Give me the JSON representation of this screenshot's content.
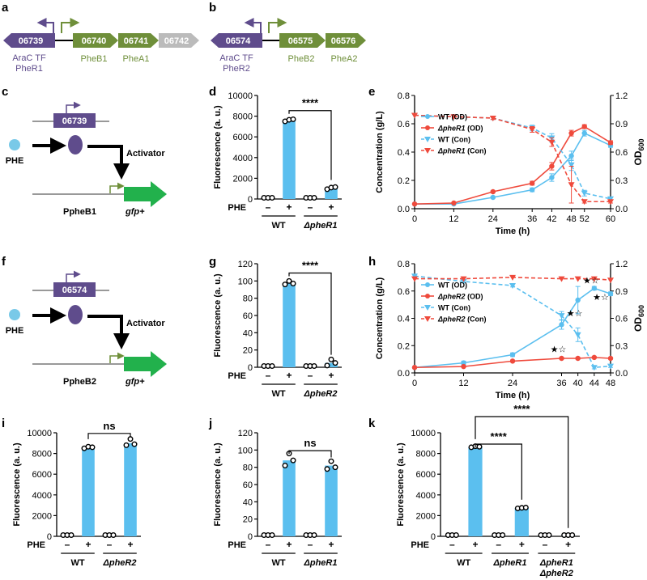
{
  "figure": {
    "panel_letters": [
      "a",
      "b",
      "c",
      "d",
      "e",
      "f",
      "g",
      "h",
      "i",
      "j",
      "k"
    ],
    "colors": {
      "blue": "#5bbfef",
      "red": "#ef4a3c",
      "purple": "#5f4c8c",
      "green": "#6f8f3a",
      "gray": "#bbbbbb",
      "arrow_green": "#22b14c",
      "ecircle": "#79c9e8"
    }
  },
  "operons": {
    "a": {
      "genes": [
        "06739",
        "06740",
        "06741",
        "06742"
      ],
      "label_tf1": "AraC TF",
      "label_tf2": "PheR1",
      "label_b": "PheB1",
      "label_a": "PheA1"
    },
    "b": {
      "genes": [
        "06574",
        "06575",
        "06576"
      ],
      "label_tf1": "AraC TF",
      "label_tf2": "PheR2",
      "label_b": "PheB2",
      "label_a": "PheA2"
    }
  },
  "schematics": {
    "c": {
      "gene": "06739",
      "inducer": "PHE",
      "activator": "Activator",
      "promoter": "PpheB1",
      "reporter": "gfp+"
    },
    "f": {
      "gene": "06574",
      "inducer": "PHE",
      "activator": "Activator",
      "promoter": "PpheB2",
      "reporter": "gfp+"
    }
  },
  "chart_data": [
    {
      "panel": "d",
      "type": "bar",
      "ylabel": "Fluorescence (a. u.)",
      "ylim": [
        0,
        10000
      ],
      "yticks": [
        0,
        2000,
        4000,
        6000,
        8000,
        10000
      ],
      "phe_label": "PHE",
      "phe_states": [
        "–",
        "+",
        "–",
        "+"
      ],
      "groups": [
        "WT",
        "ΔpheR1"
      ],
      "values": [
        20,
        7600,
        20,
        1050
      ],
      "points": [
        [
          20,
          20,
          20
        ],
        [
          7500,
          7650,
          7700
        ],
        [
          20,
          20,
          20
        ],
        [
          950,
          1100,
          1150
        ]
      ],
      "sig": [
        {
          "from": 1,
          "to": 3,
          "label": "****"
        }
      ]
    },
    {
      "panel": "g",
      "type": "bar",
      "ylabel": "Fluorescence (a. u.)",
      "ylim": [
        0,
        120
      ],
      "yticks": [
        0,
        20,
        40,
        60,
        80,
        100,
        120
      ],
      "phe_label": "PHE",
      "phe_states": [
        "–",
        "+",
        "–",
        "+"
      ],
      "groups": [
        "WT",
        "ΔpheR2"
      ],
      "values": [
        0.3,
        98,
        0.3,
        5
      ],
      "points": [
        [
          0.3,
          0.3,
          0.3
        ],
        [
          96,
          100,
          97
        ],
        [
          0.3,
          0.3,
          0.3
        ],
        [
          2,
          9,
          5
        ]
      ],
      "sig": [
        {
          "from": 1,
          "to": 3,
          "label": "****"
        }
      ]
    },
    {
      "panel": "i",
      "type": "bar",
      "ylabel": "Fluorescence (a. u.)",
      "ylim": [
        0,
        10000
      ],
      "yticks": [
        0,
        2000,
        4000,
        6000,
        8000,
        10000
      ],
      "phe_label": "PHE",
      "phe_states": [
        "–",
        "+",
        "–",
        "+"
      ],
      "groups": [
        "WT",
        "ΔpheR2"
      ],
      "values": [
        20,
        8600,
        20,
        9000
      ],
      "points": [
        [
          20,
          20,
          20
        ],
        [
          8500,
          8650,
          8600
        ],
        [
          20,
          20,
          20
        ],
        [
          8800,
          9400,
          8900
        ]
      ],
      "sig": [
        {
          "from": 1,
          "to": 3,
          "label": "ns"
        }
      ]
    },
    {
      "panel": "j",
      "type": "bar",
      "ylabel": "Fluorescence (a. u.)",
      "ylim": [
        0,
        120
      ],
      "yticks": [
        0,
        20,
        40,
        60,
        80,
        100,
        120
      ],
      "phe_label": "PHE",
      "phe_states": [
        "–",
        "+",
        "–",
        "+"
      ],
      "groups": [
        "WT",
        "ΔpheR1"
      ],
      "values": [
        0.3,
        88,
        0.3,
        82
      ],
      "points": [
        [
          0.3,
          0.3,
          0.3
        ],
        [
          82,
          96,
          88
        ],
        [
          0.3,
          0.3,
          0.3
        ],
        [
          78,
          87,
          80
        ]
      ],
      "sig": [
        {
          "from": 1,
          "to": 3,
          "label": "ns"
        }
      ]
    },
    {
      "panel": "k",
      "type": "bar",
      "ylabel": "Fluorescence (a. u.)",
      "ylim": [
        0,
        10000
      ],
      "yticks": [
        0,
        2000,
        4000,
        6000,
        8000,
        10000
      ],
      "phe_label": "PHE",
      "phe_states": [
        "–",
        "+",
        "–",
        "+",
        "–",
        "+"
      ],
      "groups": [
        "WT",
        "ΔpheR1",
        "ΔpheR1 ΔpheR2"
      ],
      "values": [
        20,
        8600,
        20,
        2750,
        20,
        20
      ],
      "points": [
        [
          20,
          20,
          20
        ],
        [
          8600,
          8700,
          8650
        ],
        [
          20,
          20,
          20
        ],
        [
          2700,
          2750,
          2780
        ],
        [
          20,
          20,
          20
        ],
        [
          20,
          20,
          20
        ]
      ],
      "sig": [
        {
          "from": 1,
          "to": 3,
          "label": "****"
        },
        {
          "from": 1,
          "to": 5,
          "label": "****"
        }
      ]
    },
    {
      "panel": "e",
      "type": "line",
      "xlabel": "Time (h)",
      "ylabel": "Concentration (g/L)",
      "y2label": "OD600",
      "xlim": [
        0,
        60
      ],
      "xticks": [
        0,
        12,
        24,
        36,
        42,
        48,
        52,
        60
      ],
      "ylim": [
        0,
        0.8
      ],
      "yticks": [
        0.0,
        0.2,
        0.4,
        0.6,
        0.8
      ],
      "y2lim": [
        0,
        1.2
      ],
      "y2ticks": [
        0.0,
        0.3,
        0.6,
        0.9,
        1.2
      ],
      "series": [
        {
          "name": "WT (OD)",
          "color": "#5bbfef",
          "dash": false,
          "marker": "circle",
          "axis": "y2",
          "x": [
            0,
            12,
            24,
            36,
            42,
            48,
            52,
            60
          ],
          "y": [
            0.05,
            0.05,
            0.12,
            0.2,
            0.33,
            0.56,
            0.8,
            0.67
          ],
          "err": [
            0,
            0,
            0.01,
            0.02,
            0.04,
            0.05,
            0.03,
            0.02
          ]
        },
        {
          "name": "ΔpheR1 (OD)",
          "color": "#ef4a3c",
          "dash": false,
          "marker": "circle",
          "axis": "y2",
          "x": [
            0,
            12,
            24,
            36,
            42,
            48,
            52,
            60
          ],
          "y": [
            0.05,
            0.06,
            0.18,
            0.27,
            0.45,
            0.8,
            0.87,
            0.7
          ],
          "err": [
            0,
            0,
            0.01,
            0.02,
            0.04,
            0.03,
            0.02,
            0.02
          ]
        },
        {
          "name": "WT (Con)",
          "color": "#5bbfef",
          "dash": true,
          "marker": "triangle",
          "axis": "y",
          "x": [
            0,
            12,
            24,
            36,
            42,
            48,
            52,
            60
          ],
          "y": [
            0.66,
            0.65,
            0.64,
            0.57,
            0.5,
            0.31,
            0.11,
            0.07
          ],
          "err": [
            0,
            0,
            0.01,
            0.02,
            0.03,
            0.04,
            0.02,
            0.01
          ]
        },
        {
          "name": "ΔpheR1 (Con)",
          "color": "#ef4a3c",
          "dash": true,
          "marker": "triangle",
          "axis": "y",
          "x": [
            0,
            12,
            24,
            36,
            42,
            48,
            52,
            60
          ],
          "y": [
            0.66,
            0.65,
            0.64,
            0.56,
            0.47,
            0.17,
            0.05,
            0.05
          ],
          "err": [
            0,
            0,
            0.01,
            0.02,
            0.03,
            0.13,
            0.01,
            0.01
          ]
        }
      ]
    },
    {
      "panel": "h",
      "type": "line",
      "xlabel": "Time (h)",
      "ylabel": "Concentration (g/L)",
      "y2label": "OD600",
      "xlim": [
        0,
        48
      ],
      "xticks": [
        0,
        12,
        24,
        36,
        40,
        44,
        48
      ],
      "ylim": [
        0,
        0.8
      ],
      "yticks": [
        0.0,
        0.2,
        0.4,
        0.6,
        0.8
      ],
      "y2lim": [
        0,
        1.2
      ],
      "y2ticks": [
        0.0,
        0.3,
        0.6,
        0.9,
        1.2
      ],
      "series": [
        {
          "name": "WT (OD)",
          "color": "#5bbfef",
          "dash": false,
          "marker": "circle",
          "axis": "y2",
          "x": [
            0,
            12,
            24,
            36,
            40,
            44,
            48
          ],
          "y": [
            0.06,
            0.11,
            0.2,
            0.53,
            0.8,
            0.93,
            0.87
          ],
          "err": [
            0,
            0.02,
            0.02,
            0.05,
            0.15,
            0.02,
            0.02
          ]
        },
        {
          "name": "ΔpheR2 (OD)",
          "color": "#ef4a3c",
          "dash": false,
          "marker": "circle",
          "axis": "y2",
          "x": [
            0,
            12,
            24,
            36,
            40,
            44,
            48
          ],
          "y": [
            0.06,
            0.07,
            0.13,
            0.16,
            0.16,
            0.17,
            0.16
          ],
          "err": [
            0,
            0,
            0.01,
            0.01,
            0.01,
            0.01,
            0.01
          ]
        },
        {
          "name": "WT (Con)",
          "color": "#5bbfef",
          "dash": true,
          "marker": "triangle",
          "axis": "y",
          "x": [
            0,
            12,
            24,
            36,
            40,
            44,
            48
          ],
          "y": [
            0.71,
            0.67,
            0.64,
            0.42,
            0.28,
            0.04,
            0.05
          ],
          "err": [
            0,
            0.01,
            0.01,
            0.03,
            0.05,
            0.01,
            0.01
          ]
        },
        {
          "name": "ΔpheR2 (Con)",
          "color": "#ef4a3c",
          "dash": true,
          "marker": "triangle",
          "axis": "y",
          "x": [
            0,
            12,
            24,
            36,
            40,
            44,
            48
          ],
          "y": [
            0.69,
            0.69,
            0.7,
            0.69,
            0.69,
            0.69,
            0.68
          ],
          "err": [
            0,
            0,
            0,
            0,
            0,
            0,
            0
          ]
        }
      ],
      "annotations": [
        {
          "x": 36,
          "text": "★☆"
        },
        {
          "x": 40,
          "text": "★☆"
        },
        {
          "x": 44,
          "text": "★☆"
        },
        {
          "x": 48,
          "text": "★☆"
        }
      ]
    }
  ]
}
